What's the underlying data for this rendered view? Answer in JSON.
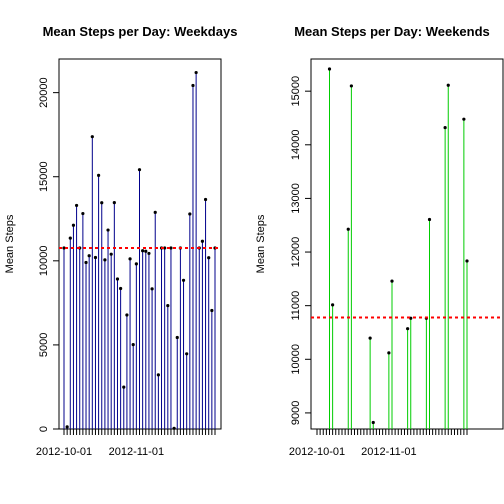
{
  "chart_data": [
    {
      "type": "line",
      "style": "histogram-spikes-with-points",
      "title": "Mean Steps per Day: Weekdays",
      "xlabel": "",
      "ylabel": "Mean Steps",
      "ylim": [
        0,
        22000
      ],
      "yticks": [
        0,
        5000,
        10000,
        15000,
        20000
      ],
      "x_tick_labels": [
        {
          "label": "2012-10-01",
          "index": 0
        },
        {
          "label": "2012-11-01",
          "index": 23
        }
      ],
      "series_color": "#00008B",
      "mean_line": {
        "value": 10760,
        "color": "#FF0000",
        "style": "dashed"
      },
      "values": [
        10761,
        126,
        11352,
        12116,
        13294,
        10761,
        12811,
        9900,
        10304,
        17382,
        10199,
        15084,
        13452,
        10056,
        11829,
        10395,
        13460,
        8918,
        8355,
        2492,
        6778,
        10119,
        5018,
        9819,
        15420,
        10600,
        10571,
        10439,
        8334,
        12883,
        3219,
        10761,
        10765,
        7336,
        10761,
        41,
        5441,
        10761,
        8841,
        4472,
        12787,
        20427,
        21194,
        10761,
        11162,
        13646,
        10183,
        7047,
        10761
      ]
    },
    {
      "type": "line",
      "style": "histogram-spikes-with-points",
      "title": "Mean Steps per Day: Weekends",
      "xlabel": "",
      "ylabel": "Mean Steps",
      "ylim": [
        8700,
        15600
      ],
      "yticks": [
        9000,
        10000,
        11000,
        12000,
        13000,
        14000,
        15000
      ],
      "x_tick_labels": [
        {
          "label": "2012-10-01",
          "index": 0
        },
        {
          "label": "2012-11-01",
          "index": 23
        }
      ],
      "series_color": "#00CC00",
      "mean_line": {
        "value": 10780,
        "color": "#FF0000",
        "style": "dashed"
      },
      "values": [
        null,
        null,
        null,
        null,
        15414,
        11015,
        null,
        null,
        null,
        null,
        12426,
        15098,
        null,
        null,
        null,
        null,
        null,
        10395,
        8821,
        null,
        null,
        null,
        null,
        10119,
        11458,
        null,
        null,
        null,
        null,
        10571,
        10765,
        null,
        null,
        null,
        null,
        10765,
        12608,
        null,
        null,
        null,
        null,
        14321,
        15110,
        null,
        null,
        null,
        null,
        14478,
        11834
      ]
    }
  ]
}
